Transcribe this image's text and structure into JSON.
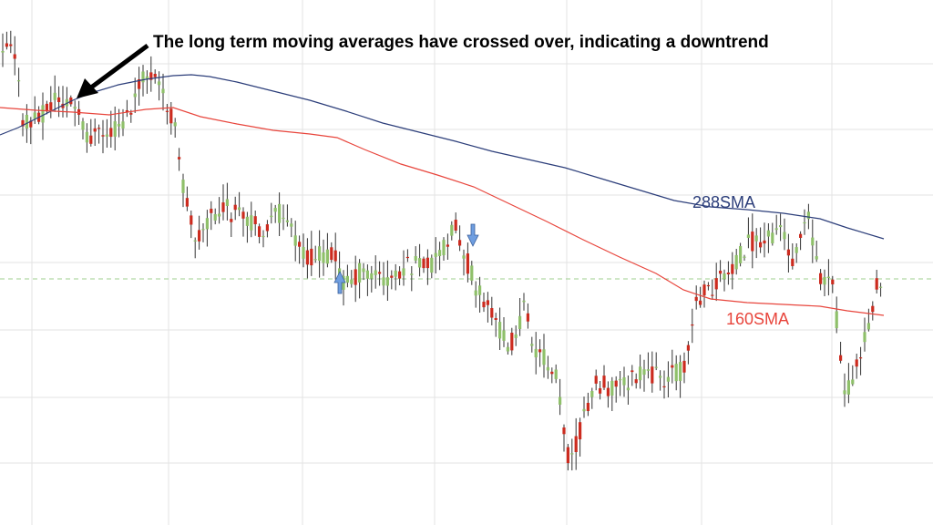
{
  "annotation": {
    "text": "The long term moving averages have crossed over, indicating a downtrend"
  },
  "colors": {
    "up": "#8fc06a",
    "down": "#cc2b1f",
    "wick": "#333333",
    "sma288": "#2c3e7a",
    "sma160": "#e8453c",
    "grid": "#e3e3e3",
    "reference_line": "#9fcf8f",
    "signal_arrow": "#6f9ee0"
  },
  "chart_data": {
    "type": "candlestick",
    "title": "",
    "xlabel": "",
    "ylabel": "",
    "grid": true,
    "series": [
      {
        "name": "288SMA",
        "kind": "line",
        "points": [
          [
            0,
            148
          ],
          [
            20,
            140
          ],
          [
            40,
            130
          ],
          [
            60,
            120
          ],
          [
            80,
            110
          ],
          [
            100,
            102
          ],
          [
            130,
            93
          ],
          [
            160,
            87
          ],
          [
            190,
            83
          ],
          [
            210,
            82
          ],
          [
            230,
            84
          ],
          [
            260,
            90
          ],
          [
            300,
            100
          ],
          [
            340,
            110
          ],
          [
            380,
            122
          ],
          [
            420,
            135
          ],
          [
            460,
            145
          ],
          [
            500,
            155
          ],
          [
            540,
            166
          ],
          [
            580,
            175
          ],
          [
            620,
            184
          ],
          [
            660,
            196
          ],
          [
            700,
            208
          ],
          [
            740,
            220
          ],
          [
            780,
            227
          ],
          [
            820,
            230
          ],
          [
            860,
            234
          ],
          [
            900,
            240
          ],
          [
            930,
            250
          ],
          [
            970,
            262
          ]
        ]
      },
      {
        "name": "160SMA",
        "kind": "line",
        "points": [
          [
            0,
            118
          ],
          [
            40,
            121
          ],
          [
            80,
            123
          ],
          [
            120,
            126
          ],
          [
            160,
            120
          ],
          [
            190,
            118
          ],
          [
            220,
            128
          ],
          [
            260,
            136
          ],
          [
            300,
            143
          ],
          [
            340,
            147
          ],
          [
            370,
            151
          ],
          [
            400,
            164
          ],
          [
            440,
            180
          ],
          [
            480,
            192
          ],
          [
            520,
            205
          ],
          [
            560,
            224
          ],
          [
            600,
            243
          ],
          [
            640,
            263
          ],
          [
            680,
            282
          ],
          [
            720,
            300
          ],
          [
            750,
            318
          ],
          [
            780,
            328
          ],
          [
            820,
            332
          ],
          [
            860,
            334
          ],
          [
            900,
            336
          ],
          [
            930,
            341
          ],
          [
            970,
            346
          ]
        ]
      }
    ],
    "signals": [
      {
        "type": "buy",
        "index": 1
      },
      {
        "type": "sell",
        "index": 1
      }
    ]
  }
}
